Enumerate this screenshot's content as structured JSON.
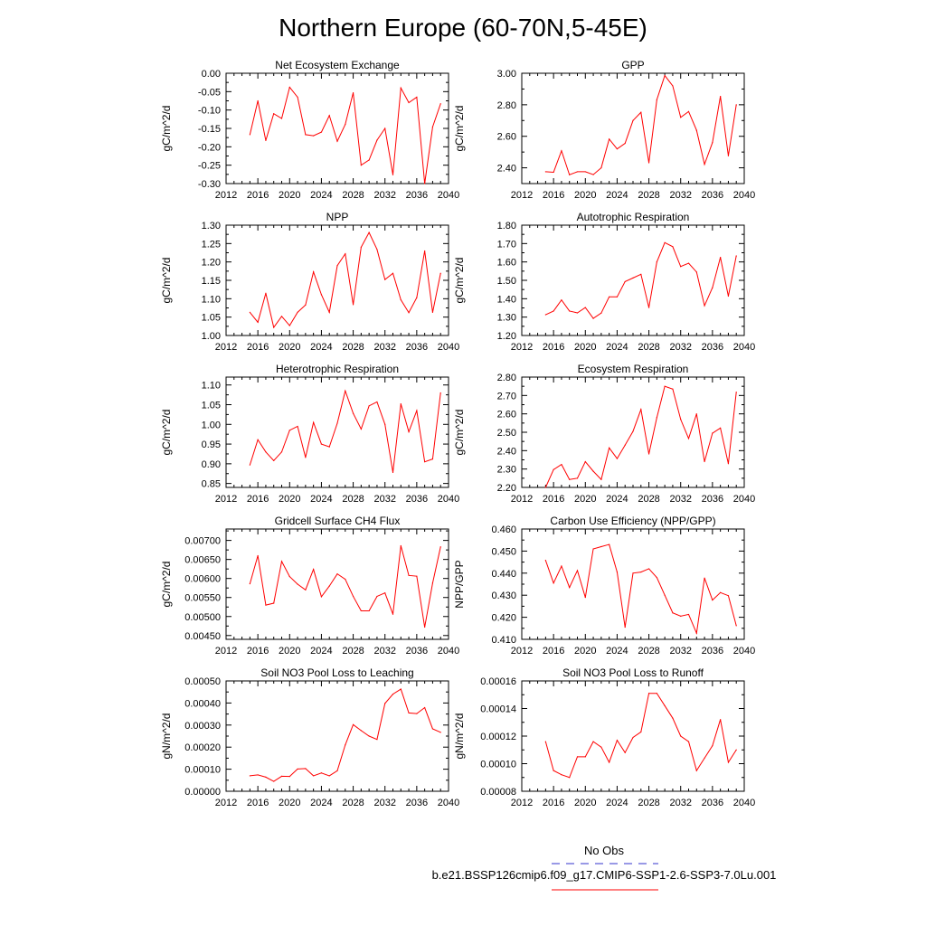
{
  "page": {
    "title": "Northern Europe (60-70N,5-45E)"
  },
  "legend": {
    "entries": [
      {
        "label": "No Obs",
        "color": "#3333cc",
        "style": "dashed"
      },
      {
        "label": "b.e21.BSSP126cmip6.f09_g17.CMIP6-SSP1-2.6-SSP3-7.0Lu.001",
        "color": "#ff0000",
        "style": "solid"
      }
    ]
  },
  "chart_data": [
    {
      "type": "line",
      "title": "Net Ecosystem Exchange",
      "xlabel": "",
      "ylabel": "gC/m^2/d",
      "xlim": [
        2012,
        2040
      ],
      "ylim": [
        -0.3,
        0.0
      ],
      "x_ticks": [
        "2012",
        "2016",
        "2020",
        "2024",
        "2028",
        "2032",
        "2036",
        "2040"
      ],
      "y_ticks": [
        "-0.30",
        "-0.25",
        "-0.20",
        "-0.15",
        "-0.10",
        "-0.05",
        "0.00"
      ],
      "x": [
        2015,
        2016,
        2017,
        2018,
        2019,
        2020,
        2021,
        2022,
        2023,
        2024,
        2025,
        2026,
        2027,
        2028,
        2029,
        2030,
        2031,
        2032,
        2033,
        2034,
        2035,
        2036,
        2037,
        2038,
        2039
      ],
      "series": [
        {
          "color": "#ff0000",
          "values": [
            -0.167,
            -0.075,
            -0.183,
            -0.11,
            -0.123,
            -0.038,
            -0.065,
            -0.167,
            -0.17,
            -0.16,
            -0.115,
            -0.185,
            -0.139,
            -0.053,
            -0.25,
            -0.236,
            -0.182,
            -0.15,
            -0.276,
            -0.04,
            -0.08,
            -0.065,
            -0.3,
            -0.146,
            -0.083
          ]
        }
      ]
    },
    {
      "type": "line",
      "title": "GPP",
      "xlabel": "",
      "ylabel": "gC/m^2/d",
      "xlim": [
        2012,
        2040
      ],
      "ylim": [
        2.3,
        3.0
      ],
      "x_ticks": [
        "2012",
        "2016",
        "2020",
        "2024",
        "2028",
        "2032",
        "2036",
        "2040"
      ],
      "y_ticks": [
        "2.40",
        "2.60",
        "2.80",
        "3.00"
      ],
      "x": [
        2015,
        2016,
        2017,
        2018,
        2019,
        2020,
        2021,
        2022,
        2023,
        2024,
        2025,
        2026,
        2027,
        2028,
        2029,
        2030,
        2031,
        2032,
        2033,
        2034,
        2035,
        2036,
        2037,
        2038,
        2039
      ],
      "series": [
        {
          "color": "#ff0000",
          "values": [
            2.375,
            2.372,
            2.508,
            2.356,
            2.375,
            2.375,
            2.357,
            2.4,
            2.582,
            2.52,
            2.555,
            2.7,
            2.752,
            2.432,
            2.832,
            2.985,
            2.92,
            2.72,
            2.757,
            2.638,
            2.422,
            2.56,
            2.853,
            2.476,
            2.8
          ]
        }
      ]
    },
    {
      "type": "line",
      "title": "NPP",
      "xlabel": "",
      "ylabel": "gC/m^2/d",
      "xlim": [
        2012,
        2040
      ],
      "ylim": [
        1.0,
        1.3
      ],
      "x_ticks": [
        "2012",
        "2016",
        "2020",
        "2024",
        "2028",
        "2032",
        "2036",
        "2040"
      ],
      "y_ticks": [
        "1.00",
        "1.05",
        "1.10",
        "1.15",
        "1.20",
        "1.25",
        "1.30"
      ],
      "x": [
        2015,
        2016,
        2017,
        2018,
        2019,
        2020,
        2021,
        2022,
        2023,
        2024,
        2025,
        2026,
        2027,
        2028,
        2029,
        2030,
        2031,
        2032,
        2033,
        2034,
        2035,
        2036,
        2037,
        2038,
        2039
      ],
      "series": [
        {
          "color": "#ff0000",
          "values": [
            1.063,
            1.036,
            1.115,
            1.022,
            1.052,
            1.027,
            1.063,
            1.083,
            1.173,
            1.111,
            1.063,
            1.19,
            1.222,
            1.084,
            1.24,
            1.28,
            1.234,
            1.152,
            1.169,
            1.097,
            1.062,
            1.103,
            1.23,
            1.063,
            1.169
          ]
        }
      ]
    },
    {
      "type": "line",
      "title": "Autotrophic Respiration",
      "xlabel": "",
      "ylabel": "gC/m^2/d",
      "xlim": [
        2012,
        2040
      ],
      "ylim": [
        1.2,
        1.8
      ],
      "x_ticks": [
        "2012",
        "2016",
        "2020",
        "2024",
        "2028",
        "2032",
        "2036",
        "2040"
      ],
      "y_ticks": [
        "1.20",
        "1.30",
        "1.40",
        "1.50",
        "1.60",
        "1.70",
        "1.80"
      ],
      "x": [
        2015,
        2016,
        2017,
        2018,
        2019,
        2020,
        2021,
        2022,
        2023,
        2024,
        2025,
        2026,
        2027,
        2028,
        2029,
        2030,
        2031,
        2032,
        2033,
        2034,
        2035,
        2036,
        2037,
        2038,
        2039
      ],
      "series": [
        {
          "color": "#ff0000",
          "values": [
            1.313,
            1.333,
            1.393,
            1.333,
            1.323,
            1.352,
            1.293,
            1.322,
            1.41,
            1.41,
            1.493,
            1.513,
            1.533,
            1.352,
            1.6,
            1.705,
            1.683,
            1.575,
            1.593,
            1.545,
            1.362,
            1.46,
            1.625,
            1.414,
            1.633
          ]
        }
      ]
    },
    {
      "type": "line",
      "title": "Heterotrophic Respiration",
      "xlabel": "",
      "ylabel": "gC/m^2/d",
      "xlim": [
        2012,
        2040
      ],
      "ylim": [
        0.84,
        1.12
      ],
      "x_ticks": [
        "2012",
        "2016",
        "2020",
        "2024",
        "2028",
        "2032",
        "2036",
        "2040"
      ],
      "y_ticks": [
        "0.85",
        "0.90",
        "0.95",
        "1.00",
        "1.05",
        "1.10"
      ],
      "x": [
        2015,
        2016,
        2017,
        2018,
        2019,
        2020,
        2021,
        2022,
        2023,
        2024,
        2025,
        2026,
        2027,
        2028,
        2029,
        2030,
        2031,
        2032,
        2033,
        2034,
        2035,
        2036,
        2037,
        2038,
        2039
      ],
      "series": [
        {
          "color": "#ff0000",
          "values": [
            0.897,
            0.961,
            0.93,
            0.908,
            0.93,
            0.985,
            0.995,
            0.916,
            1.005,
            0.95,
            0.943,
            1.003,
            1.085,
            1.028,
            0.988,
            1.047,
            1.057,
            1.0,
            0.878,
            1.052,
            0.981,
            1.035,
            0.905,
            0.912,
            1.08
          ]
        }
      ]
    },
    {
      "type": "line",
      "title": "Ecosystem Respiration",
      "xlabel": "",
      "ylabel": "gC/m^2/d",
      "xlim": [
        2012,
        2040
      ],
      "ylim": [
        2.2,
        2.8
      ],
      "x_ticks": [
        "2012",
        "2016",
        "2020",
        "2024",
        "2028",
        "2032",
        "2036",
        "2040"
      ],
      "y_ticks": [
        "2.20",
        "2.30",
        "2.40",
        "2.50",
        "2.60",
        "2.70",
        "2.80"
      ],
      "x": [
        2015,
        2016,
        2017,
        2018,
        2019,
        2020,
        2021,
        2022,
        2023,
        2024,
        2025,
        2026,
        2027,
        2028,
        2029,
        2030,
        2031,
        2032,
        2033,
        2034,
        2035,
        2036,
        2037,
        2038,
        2039
      ],
      "series": [
        {
          "color": "#ff0000",
          "values": [
            2.2,
            2.297,
            2.325,
            2.243,
            2.25,
            2.34,
            2.288,
            2.243,
            2.415,
            2.357,
            2.43,
            2.505,
            2.624,
            2.382,
            2.58,
            2.75,
            2.735,
            2.57,
            2.466,
            2.6,
            2.34,
            2.495,
            2.523,
            2.329,
            2.718
          ]
        }
      ]
    },
    {
      "type": "line",
      "title": "Gridcell Surface CH4 Flux",
      "xlabel": "",
      "ylabel": "gC/m^2/d",
      "xlim": [
        2012,
        2040
      ],
      "ylim": [
        0.0044,
        0.0073
      ],
      "x_ticks": [
        "2012",
        "2016",
        "2020",
        "2024",
        "2028",
        "2032",
        "2036",
        "2040"
      ],
      "y_ticks": [
        "0.00450",
        "0.00500",
        "0.00550",
        "0.00600",
        "0.00650",
        "0.00700"
      ],
      "x": [
        2015,
        2016,
        2017,
        2018,
        2019,
        2020,
        2021,
        2022,
        2023,
        2024,
        2025,
        2026,
        2027,
        2028,
        2029,
        2030,
        2031,
        2032,
        2033,
        2034,
        2035,
        2036,
        2037,
        2038,
        2039
      ],
      "series": [
        {
          "color": "#ff0000",
          "values": [
            0.00586,
            0.0066,
            0.0053,
            0.00535,
            0.00645,
            0.00605,
            0.00585,
            0.0057,
            0.00624,
            0.00552,
            0.0058,
            0.00612,
            0.00598,
            0.00553,
            0.00515,
            0.00515,
            0.00553,
            0.00562,
            0.00506,
            0.00686,
            0.00608,
            0.00606,
            0.00472,
            0.00588,
            0.00683
          ]
        }
      ]
    },
    {
      "type": "line",
      "title": "Carbon Use Efficiency (NPP/GPP)",
      "xlabel": "",
      "ylabel": "NPP/GPP",
      "xlim": [
        2012,
        2040
      ],
      "ylim": [
        0.41,
        0.46
      ],
      "x_ticks": [
        "2012",
        "2016",
        "2020",
        "2024",
        "2028",
        "2032",
        "2036",
        "2040"
      ],
      "y_ticks": [
        "0.410",
        "0.420",
        "0.430",
        "0.440",
        "0.450",
        "0.460"
      ],
      "x": [
        2015,
        2016,
        2017,
        2018,
        2019,
        2020,
        2021,
        2022,
        2023,
        2024,
        2025,
        2026,
        2027,
        2028,
        2029,
        2030,
        2031,
        2032,
        2033,
        2034,
        2035,
        2036,
        2037,
        2038,
        2039
      ],
      "series": [
        {
          "color": "#ff0000",
          "values": [
            0.4458,
            0.4355,
            0.4432,
            0.4335,
            0.4412,
            0.429,
            0.451,
            0.452,
            0.453,
            0.4405,
            0.4155,
            0.44,
            0.4405,
            0.442,
            0.438,
            0.43,
            0.422,
            0.4205,
            0.4213,
            0.4128,
            0.4378,
            0.4278,
            0.4312,
            0.4298,
            0.4162
          ]
        }
      ]
    },
    {
      "type": "line",
      "title": "Soil NO3 Pool Loss to Leaching",
      "xlabel": "",
      "ylabel": "gN/m^2/d",
      "xlim": [
        2012,
        2040
      ],
      "ylim": [
        0.0,
        0.0005
      ],
      "x_ticks": [
        "2012",
        "2016",
        "2020",
        "2024",
        "2028",
        "2032",
        "2036",
        "2040"
      ],
      "y_ticks": [
        "0.00000",
        "0.00010",
        "0.00020",
        "0.00030",
        "0.00040",
        "0.00050"
      ],
      "x": [
        2015,
        2016,
        2017,
        2018,
        2019,
        2020,
        2021,
        2022,
        2023,
        2024,
        2025,
        2026,
        2027,
        2028,
        2029,
        2030,
        2031,
        2032,
        2033,
        2034,
        2035,
        2036,
        2037,
        2038,
        2039
      ],
      "series": [
        {
          "color": "#ff0000",
          "values": [
            7e-05,
            7.4e-05,
            6.4e-05,
            4.5e-05,
            6.8e-05,
            6.7e-05,
            0.000101,
            0.000103,
            7e-05,
            8.3e-05,
            7e-05,
            9.3e-05,
            0.00021,
            0.000302,
            0.000275,
            0.00025,
            0.000235,
            0.000398,
            0.00044,
            0.000463,
            0.000355,
            0.000352,
            0.000379,
            0.000283,
            0.000267
          ]
        }
      ]
    },
    {
      "type": "line",
      "title": "Soil NO3 Pool Loss to Runoff",
      "xlabel": "",
      "ylabel": "gN/m^2/d",
      "xlim": [
        2012,
        2040
      ],
      "ylim": [
        8e-05,
        0.00016
      ],
      "x_ticks": [
        "2012",
        "2016",
        "2020",
        "2024",
        "2028",
        "2032",
        "2036",
        "2040"
      ],
      "y_ticks": [
        "0.00008",
        "0.00010",
        "0.00012",
        "0.00014",
        "0.00016"
      ],
      "x": [
        2015,
        2016,
        2017,
        2018,
        2019,
        2020,
        2021,
        2022,
        2023,
        2024,
        2025,
        2026,
        2027,
        2028,
        2029,
        2030,
        2031,
        2032,
        2033,
        2034,
        2035,
        2036,
        2037,
        2038,
        2039
      ],
      "series": [
        {
          "color": "#ff0000",
          "values": [
            0.000116,
            9.5e-05,
            9.2e-05,
            9e-05,
            0.000105,
            0.000105,
            0.000116,
            0.000112,
            0.000101,
            0.000117,
            0.000108,
            0.000119,
            0.000123,
            0.000151,
            0.000151,
            0.000142,
            0.000133,
            0.00012,
            0.000116,
            9.5e-05,
            0.000104,
            0.000113,
            0.000132,
            0.000101,
            0.00011
          ]
        }
      ]
    }
  ]
}
